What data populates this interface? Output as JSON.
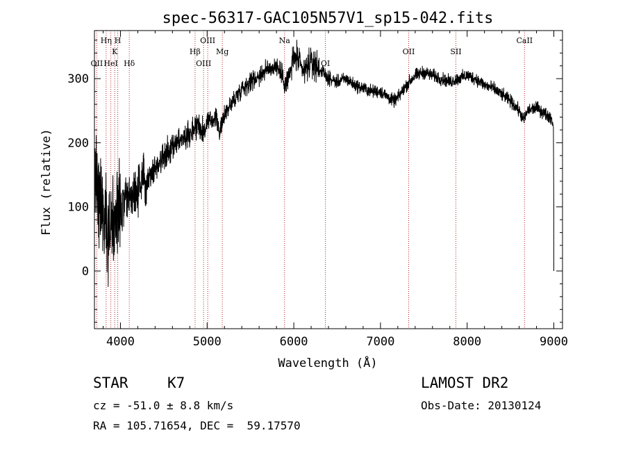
{
  "chart_data": {
    "type": "line",
    "title": "spec-56317-GAC105N57V1_sp15-042.fits",
    "xlabel": "Wavelength (Å)",
    "ylabel": "Flux (relative)",
    "xlim": [
      3700,
      9100
    ],
    "ylim": [
      -90,
      375
    ],
    "xticks": [
      4000,
      5000,
      6000,
      7000,
      8000,
      9000
    ],
    "xtick_labels": [
      "4000",
      "5000",
      "6000",
      "7000",
      "8000",
      "9000"
    ],
    "yticks": [
      0,
      100,
      200,
      300
    ],
    "ytick_labels": [
      "0",
      "100",
      "200",
      "300"
    ],
    "grid": false,
    "line_color": "#000000",
    "marker_color": "#b22222",
    "continuum": {
      "x": [
        3700,
        3750,
        3800,
        3850,
        3900,
        3950,
        4000,
        4050,
        4100,
        4150,
        4200,
        4300,
        4400,
        4500,
        4600,
        4700,
        4800,
        4850,
        4900,
        4950,
        5000,
        5100,
        5150,
        5200,
        5300,
        5400,
        5500,
        5600,
        5700,
        5800,
        5850,
        5900,
        5950,
        6000,
        6050,
        6100,
        6200,
        6300,
        6400,
        6500,
        6600,
        6700,
        6800,
        6900,
        7000,
        7100,
        7150,
        7200,
        7300,
        7400,
        7500,
        7600,
        7700,
        7800,
        7900,
        8000,
        8100,
        8200,
        8300,
        8400,
        8500,
        8600,
        8650,
        8700,
        8800,
        8900,
        8960,
        8980,
        8990
      ],
      "y": [
        150,
        125,
        95,
        75,
        70,
        80,
        95,
        105,
        115,
        120,
        130,
        145,
        160,
        180,
        195,
        205,
        215,
        225,
        230,
        215,
        230,
        240,
        215,
        245,
        265,
        285,
        295,
        305,
        315,
        320,
        310,
        290,
        305,
        335,
        330,
        310,
        325,
        315,
        300,
        295,
        300,
        290,
        285,
        280,
        280,
        270,
        265,
        270,
        290,
        305,
        310,
        305,
        300,
        295,
        300,
        305,
        300,
        290,
        285,
        275,
        265,
        250,
        235,
        250,
        255,
        245,
        240,
        235,
        230
      ]
    },
    "lines": [
      {
        "label": "OII",
        "wavelength": 3727,
        "row": 2
      },
      {
        "label": "Hη",
        "wavelength": 3835,
        "row": 0
      },
      {
        "label": "HeI",
        "wavelength": 3889,
        "row": 2
      },
      {
        "label": "K",
        "wavelength": 3934,
        "row": 1
      },
      {
        "label": "H",
        "wavelength": 3969,
        "row": 0
      },
      {
        "label": "Hδ",
        "wavelength": 4102,
        "row": 2
      },
      {
        "label": "Hβ",
        "wavelength": 4861,
        "row": 1
      },
      {
        "label": "OIII",
        "wavelength": 4959,
        "row": 2
      },
      {
        "label": "OIII",
        "wavelength": 5007,
        "row": 0
      },
      {
        "label": "Mg",
        "wavelength": 5175,
        "row": 1
      },
      {
        "label": "Na",
        "wavelength": 5893,
        "row": 0
      },
      {
        "label": "OI",
        "wavelength": 6364,
        "row": 2
      },
      {
        "label": "OII",
        "wavelength": 7325,
        "row": 1
      },
      {
        "label": "SII",
        "wavelength": 7870,
        "row": 1
      },
      {
        "label": "CaII",
        "wavelength": 8662,
        "row": 0
      }
    ]
  },
  "info": {
    "object_class": "STAR",
    "subclass": "K7",
    "survey": "LAMOST DR2",
    "redshift": "cz = -51.0 ± 8.8 km/s",
    "obs_date": "Obs-Date: 20130124",
    "coords": "RA = 105.71654, DEC =  59.17570"
  }
}
